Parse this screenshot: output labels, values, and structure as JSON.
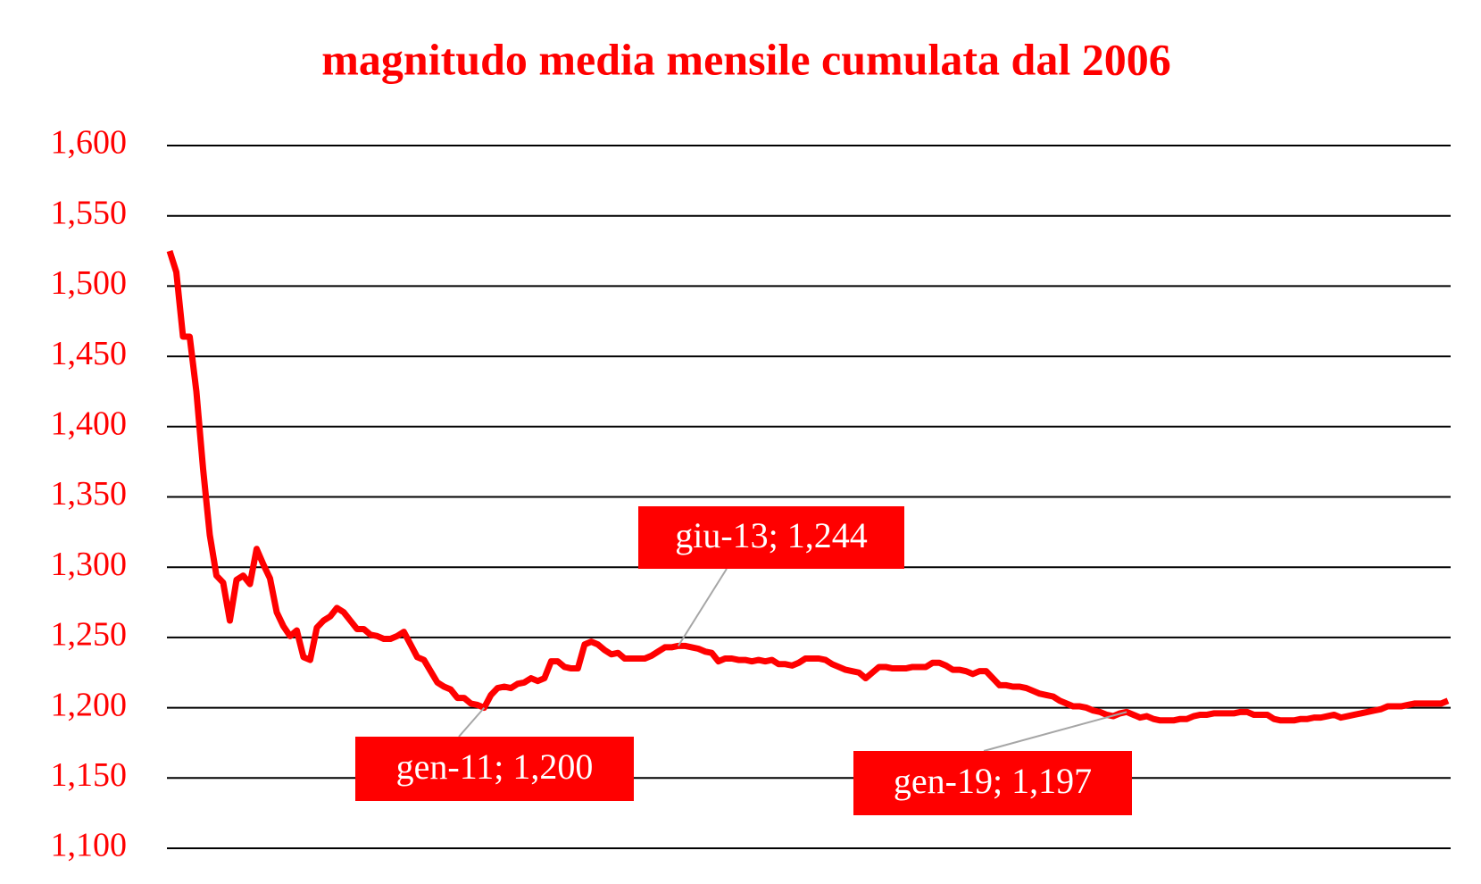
{
  "chart_data": {
    "type": "line",
    "title": "magnitudo media mensile cumulata dal 2006",
    "color": "#ff0000",
    "grid": true,
    "ylim": [
      1.1,
      1.6
    ],
    "yticks": [
      {
        "value": 1.1,
        "label": "1,100"
      },
      {
        "value": 1.15,
        "label": "1,150"
      },
      {
        "value": 1.2,
        "label": "1,200"
      },
      {
        "value": 1.25,
        "label": "1,250"
      },
      {
        "value": 1.3,
        "label": "1,300"
      },
      {
        "value": 1.35,
        "label": "1,350"
      },
      {
        "value": 1.4,
        "label": "1,400"
      },
      {
        "value": 1.45,
        "label": "1,450"
      },
      {
        "value": 1.5,
        "label": "1,500"
      },
      {
        "value": 1.55,
        "label": "1,550"
      },
      {
        "value": 1.6,
        "label": "1,600"
      }
    ],
    "values": [
      1.525,
      1.51,
      1.464,
      1.464,
      1.425,
      1.37,
      1.323,
      1.294,
      1.289,
      1.262,
      1.291,
      1.294,
      1.288,
      1.313,
      1.302,
      1.292,
      1.268,
      1.258,
      1.251,
      1.255,
      1.236,
      1.234,
      1.257,
      1.262,
      1.265,
      1.271,
      1.268,
      1.262,
      1.256,
      1.256,
      1.252,
      1.251,
      1.249,
      1.249,
      1.251,
      1.254,
      1.245,
      1.236,
      1.234,
      1.226,
      1.218,
      1.215,
      1.213,
      1.207,
      1.207,
      1.203,
      1.202,
      1.2,
      1.209,
      1.214,
      1.215,
      1.214,
      1.217,
      1.218,
      1.221,
      1.219,
      1.221,
      1.233,
      1.233,
      1.229,
      1.228,
      1.228,
      1.245,
      1.247,
      1.245,
      1.241,
      1.238,
      1.239,
      1.235,
      1.235,
      1.235,
      1.235,
      1.237,
      1.24,
      1.243,
      1.243,
      1.244,
      1.244,
      1.243,
      1.242,
      1.24,
      1.239,
      1.233,
      1.235,
      1.235,
      1.234,
      1.234,
      1.233,
      1.234,
      1.233,
      1.234,
      1.231,
      1.231,
      1.23,
      1.232,
      1.235,
      1.235,
      1.235,
      1.234,
      1.231,
      1.229,
      1.227,
      1.226,
      1.225,
      1.221,
      1.225,
      1.229,
      1.229,
      1.228,
      1.228,
      1.228,
      1.229,
      1.229,
      1.229,
      1.232,
      1.232,
      1.23,
      1.227,
      1.227,
      1.226,
      1.224,
      1.226,
      1.226,
      1.221,
      1.216,
      1.216,
      1.215,
      1.215,
      1.214,
      1.212,
      1.21,
      1.209,
      1.208,
      1.205,
      1.203,
      1.201,
      1.201,
      1.2,
      1.198,
      1.197,
      1.195,
      1.194,
      1.196,
      1.197,
      1.195,
      1.193,
      1.194,
      1.192,
      1.191,
      1.191,
      1.191,
      1.192,
      1.192,
      1.194,
      1.195,
      1.195,
      1.196,
      1.196,
      1.196,
      1.196,
      1.197,
      1.197,
      1.195,
      1.195,
      1.195,
      1.192,
      1.191,
      1.191,
      1.191,
      1.192,
      1.192,
      1.193,
      1.193,
      1.194,
      1.195,
      1.193,
      1.194,
      1.195,
      1.196,
      1.197,
      1.198,
      1.199,
      1.201,
      1.201,
      1.201,
      1.202,
      1.203,
      1.203,
      1.203,
      1.203,
      1.203,
      1.205
    ],
    "annotations": [
      {
        "text": "gen-11; 1,200",
        "point": 47
      },
      {
        "text": "giu-13; 1,244",
        "point": 76
      },
      {
        "text": "gen-19; 1,197",
        "point": 143
      }
    ]
  }
}
